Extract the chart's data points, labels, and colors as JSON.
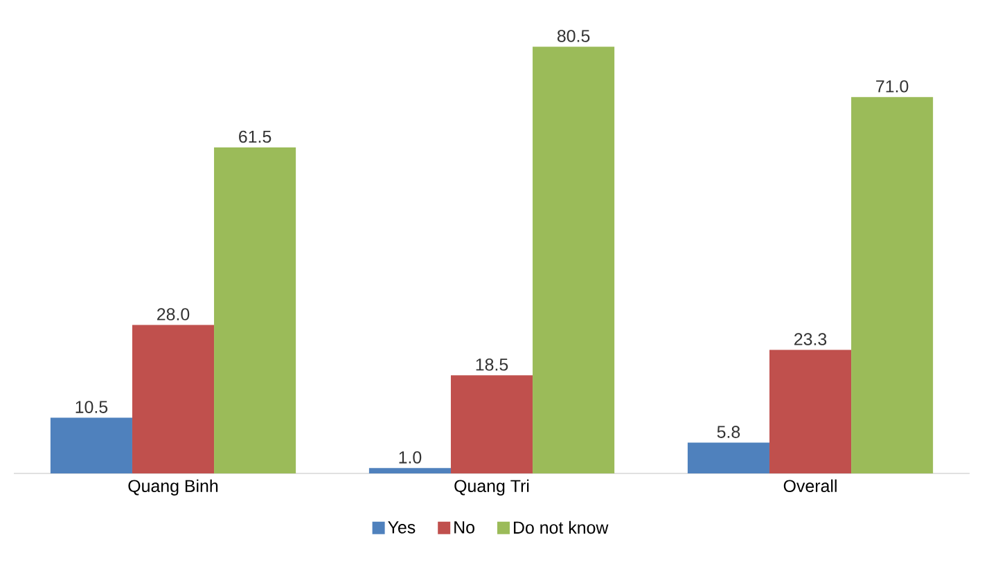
{
  "chart_data": {
    "type": "bar",
    "categories": [
      "Quang Binh",
      "Quang Tri",
      "Overall"
    ],
    "series": [
      {
        "name": "Yes",
        "color": "#4f81bd",
        "values": [
          10.5,
          1.0,
          5.8
        ],
        "value_labels": [
          "10.5",
          "1.0",
          "5.8"
        ]
      },
      {
        "name": "No",
        "color": "#c0504d",
        "values": [
          28.0,
          18.5,
          23.3
        ],
        "value_labels": [
          "28.0",
          "18.5",
          "23.3"
        ]
      },
      {
        "name": "Do not know",
        "color": "#9bbb59",
        "values": [
          61.5,
          80.5,
          71.0
        ],
        "value_labels": [
          "61.5",
          "80.5",
          "71.0"
        ]
      }
    ],
    "legend": "bottom"
  }
}
